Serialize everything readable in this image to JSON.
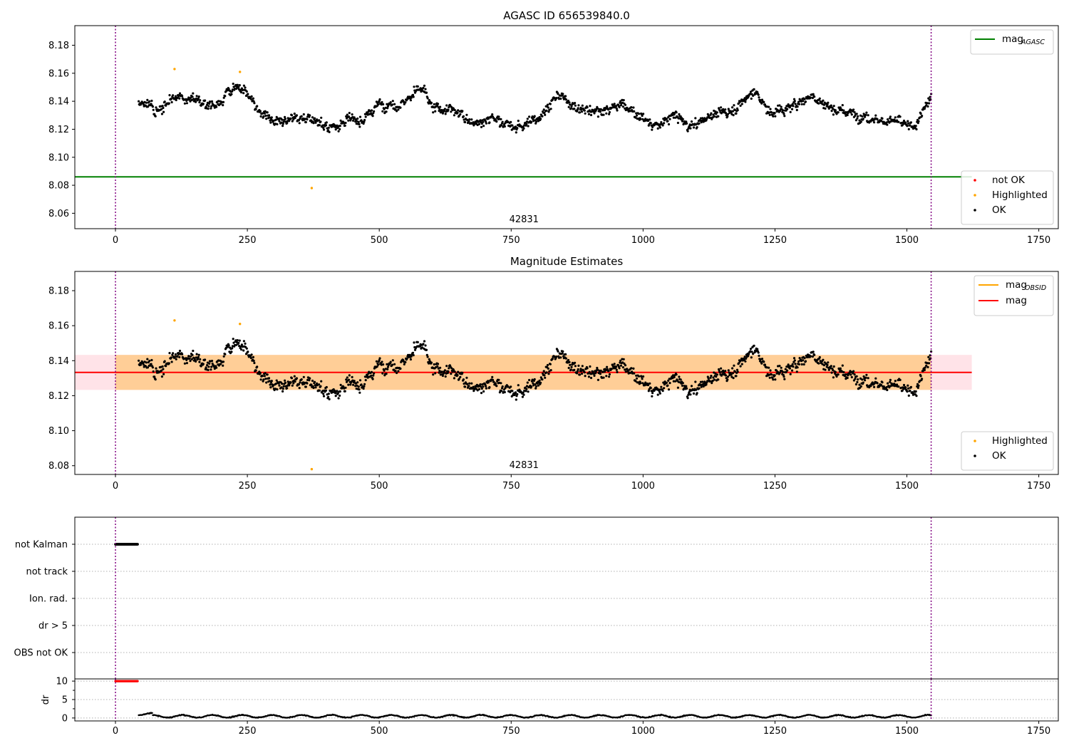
{
  "chart_data": [
    {
      "type": "scatter",
      "title": "AGASC ID 656539840.0",
      "xlim": [
        -77,
        1787
      ],
      "ylim": [
        8.049,
        8.194
      ],
      "xticks": [
        0,
        250,
        500,
        750,
        1000,
        1250,
        1500,
        1750
      ],
      "yticks": [
        8.06,
        8.08,
        8.1,
        8.12,
        8.14,
        8.16,
        8.18
      ],
      "grid": false,
      "annotation": "42831",
      "vlines": [
        0,
        1546
      ],
      "hlines": [
        {
          "name": "mag_AGASC",
          "y": 8.086,
          "x": [
            -77,
            1623
          ],
          "color": "#008000"
        }
      ],
      "legend_upper": [
        {
          "label": "mag",
          "sub": "AGASC",
          "marker": "line",
          "color": "#008000"
        }
      ],
      "legend_lower": [
        {
          "label": "not OK",
          "marker": "dot",
          "color": "#ff0000"
        },
        {
          "label": "Highlighted",
          "marker": "dot",
          "color": "#ffa500"
        },
        {
          "label": "OK",
          "marker": "dot",
          "color": "#000000"
        }
      ],
      "series": [
        {
          "name": "OK",
          "generator": "magnitude_noise",
          "x_range": [
            44,
            1546
          ],
          "count": 1460,
          "color": "#000000"
        },
        {
          "name": "Highlighted",
          "color": "#ffa500",
          "points": [
            [
              112,
              8.163
            ],
            [
              236,
              8.161
            ],
            [
              372,
              8.078
            ]
          ]
        }
      ]
    },
    {
      "type": "scatter",
      "title": "Magnitude Estimates",
      "xlim": [
        -77,
        1787
      ],
      "ylim": [
        8.075,
        8.191
      ],
      "xticks": [
        0,
        250,
        500,
        750,
        1000,
        1250,
        1500,
        1750
      ],
      "yticks": [
        8.08,
        8.1,
        8.12,
        8.14,
        8.16,
        8.18
      ],
      "grid": false,
      "annotation": "42831",
      "vlines": [
        0,
        1546
      ],
      "hlines": [
        {
          "name": "mag",
          "y": 8.1333,
          "x": [
            -77,
            1623
          ],
          "color": "#ff0000"
        }
      ],
      "bands": [
        {
          "name": "mag band",
          "y": [
            8.1233,
            8.1433
          ],
          "x": [
            -77,
            1623
          ],
          "color": "#ffc0cb"
        },
        {
          "name": "mag_OBSID band",
          "y": [
            8.1233,
            8.1433
          ],
          "x": [
            0,
            1546
          ],
          "color": "#ffa500"
        }
      ],
      "legend_upper": [
        {
          "label": "mag",
          "sub": "OBSID",
          "marker": "line",
          "color": "#ffa500"
        },
        {
          "label": "mag",
          "sub": "",
          "marker": "line",
          "color": "#ff0000"
        }
      ],
      "legend_lower": [
        {
          "label": "Highlighted",
          "marker": "dot",
          "color": "#ffa500"
        },
        {
          "label": "OK",
          "marker": "dot",
          "color": "#000000"
        }
      ],
      "series": [
        {
          "name": "OK",
          "generator": "magnitude_noise",
          "x_range": [
            44,
            1546
          ],
          "count": 1460,
          "color": "#000000"
        },
        {
          "name": "Highlighted",
          "color": "#ffa500",
          "points": [
            [
              112,
              8.163
            ],
            [
              236,
              8.161
            ],
            [
              372,
              8.078
            ]
          ]
        }
      ]
    },
    {
      "type": "scatter",
      "title": "",
      "xlim": [
        -77,
        1787
      ],
      "categories": [
        "not Kalman",
        "not track",
        "Ion. rad.",
        "dr > 5",
        "OBS not OK"
      ],
      "grid": true,
      "vlines": [
        0,
        1546
      ],
      "series": [
        {
          "name": "not Kalman",
          "color": "#000000",
          "x_range": [
            0,
            42
          ],
          "count": 40
        }
      ]
    },
    {
      "type": "line",
      "title": "",
      "ylabel": "dr",
      "xlim": [
        -77,
        1787
      ],
      "ylim": [
        -0.8,
        10.6
      ],
      "xticks": [
        0,
        250,
        500,
        750,
        1000,
        1250,
        1500,
        1750
      ],
      "yticks": [
        0,
        5,
        10
      ],
      "grid": true,
      "vlines": [
        0,
        1546
      ],
      "series": [
        {
          "name": "dr",
          "color": "#000000",
          "generator": "dr_noise",
          "x_range": [
            44,
            1546
          ],
          "count": 1460
        },
        {
          "name": "dr capped",
          "color": "#ff0000",
          "y": 10,
          "x_range": [
            0,
            42
          ],
          "count": 40
        }
      ]
    }
  ]
}
